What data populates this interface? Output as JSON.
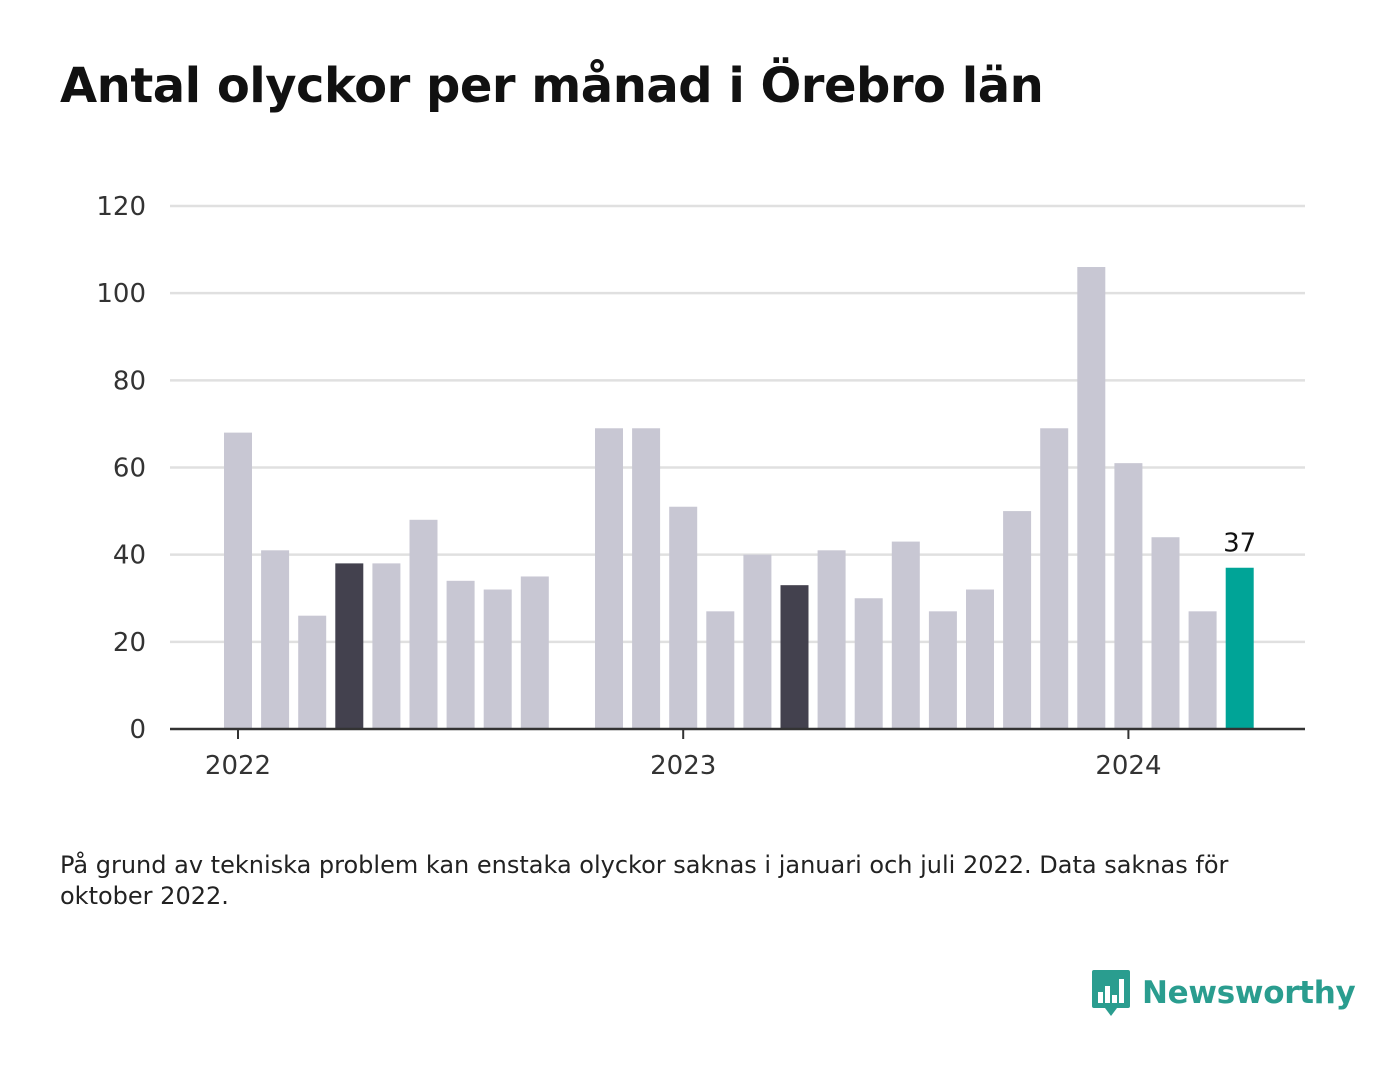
{
  "title": "Antal olyckor per månad i Örebro län",
  "note": "På grund av tekniska problem kan enstaka olyckor saknas i januari och juli 2022. Data saknas för oktober 2022.",
  "brand": {
    "name": "Newsworthy",
    "icon": "bar-chart-logo-icon",
    "color": "#2a9d8f"
  },
  "colors": {
    "bar": "#c8c7d3",
    "highlight_dark": "#43414e",
    "current": "#00a497",
    "grid": "#e0e0e0",
    "axis": "#333333"
  },
  "chart_data": {
    "type": "bar",
    "title": "Antal olyckor per månad i Örebro län",
    "xlabel": "",
    "ylabel": "",
    "ylim": [
      0,
      120
    ],
    "yticks": [
      0,
      20,
      40,
      60,
      80,
      100,
      120
    ],
    "xticks": [
      {
        "label": "2022",
        "at": "2022-01"
      },
      {
        "label": "2023",
        "at": "2023-01"
      },
      {
        "label": "2024",
        "at": "2024-01"
      }
    ],
    "grid": true,
    "legend": "none",
    "categories": [
      "2022-01",
      "2022-02",
      "2022-03",
      "2022-04",
      "2022-05",
      "2022-06",
      "2022-07",
      "2022-08",
      "2022-09",
      "2022-10",
      "2022-11",
      "2022-12",
      "2023-01",
      "2023-02",
      "2023-03",
      "2023-04",
      "2023-05",
      "2023-06",
      "2023-07",
      "2023-08",
      "2023-09",
      "2023-10",
      "2023-11",
      "2023-12",
      "2024-01",
      "2024-02",
      "2024-03",
      "2024-04"
    ],
    "values": [
      68,
      41,
      26,
      38,
      38,
      48,
      34,
      32,
      35,
      null,
      69,
      69,
      51,
      27,
      40,
      33,
      41,
      30,
      43,
      27,
      32,
      50,
      69,
      106,
      61,
      44,
      27,
      37
    ],
    "highlight_dark": [
      "2022-04",
      "2023-04"
    ],
    "highlight_current": "2024-04",
    "data_labels": [
      {
        "category": "2024-04",
        "text": "37"
      }
    ]
  }
}
